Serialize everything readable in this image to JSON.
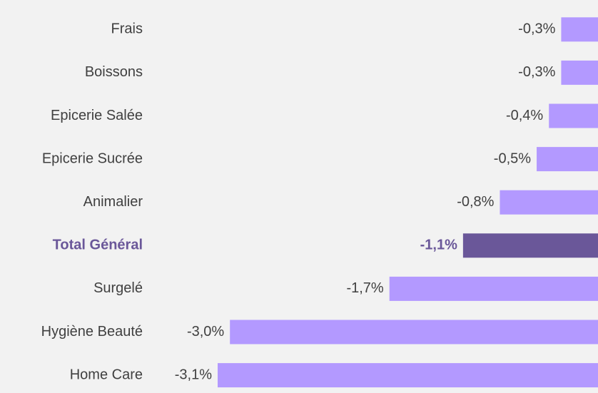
{
  "chart_data": {
    "type": "bar",
    "orientation": "horizontal",
    "categories": [
      "Frais",
      "Boissons",
      "Epicerie Salée",
      "Epicerie Sucrée",
      "Animalier",
      "Total Général",
      "Surgelé",
      "Hygiène Beauté",
      "Home Care"
    ],
    "values": [
      -0.3,
      -0.3,
      -0.4,
      -0.5,
      -0.8,
      -1.1,
      -1.7,
      -3.0,
      -3.1
    ],
    "value_labels": [
      "-0,3%",
      "-0,3%",
      "-0,4%",
      "-0,5%",
      "-0,8%",
      "-1,1%",
      "-1,7%",
      "-3,0%",
      "-3,1%"
    ],
    "colors": [
      "#b399ff",
      "#b399ff",
      "#b399ff",
      "#b399ff",
      "#b399ff",
      "#6a5799",
      "#b399ff",
      "#b399ff",
      "#b399ff"
    ],
    "highlight_color": "#6a5799",
    "xlim": [
      -3.1,
      0
    ]
  }
}
